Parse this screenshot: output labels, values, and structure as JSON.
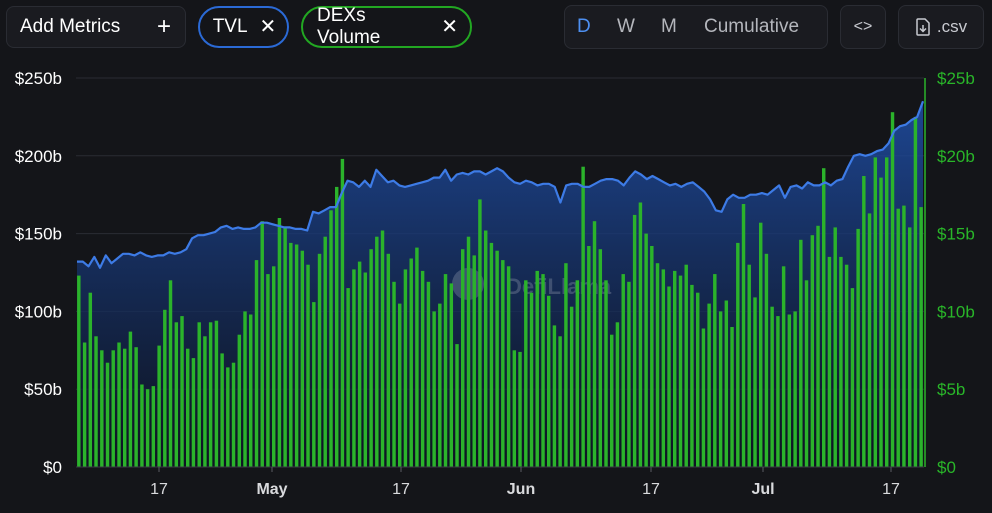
{
  "toolbar": {
    "add_metrics_label": "Add Metrics",
    "add_icon": "plus-icon",
    "chips": [
      {
        "label": "TVL",
        "color": "#2b6ad6",
        "remove_icon": "close-icon"
      },
      {
        "label": "DEXs Volume",
        "color": "#22a722",
        "remove_icon": "close-icon"
      }
    ],
    "periods": [
      "D",
      "W",
      "M",
      "Cumulative"
    ],
    "active_period": "D",
    "embed_icon": "code-icon",
    "csv_icon": "download-file-icon",
    "csv_label": ".csv"
  },
  "watermark": "DefiLlama",
  "chart_data": {
    "type": "bar+area",
    "x_tick_labels": [
      "17",
      "May",
      "17",
      "Jun",
      "17",
      "Jul",
      "17"
    ],
    "left_axis": {
      "ticks": [
        "$0",
        "$50b",
        "$100b",
        "$150b",
        "$200b",
        "$250b"
      ],
      "ylim": [
        0,
        250
      ]
    },
    "right_axis": {
      "ticks": [
        "$0",
        "$5b",
        "$10b",
        "$15b",
        "$20b",
        "$25b"
      ],
      "ylim": [
        0,
        25
      ]
    },
    "grid": true,
    "series": [
      {
        "name": "TVL",
        "type": "area",
        "axis": "left",
        "color": "#3d7be6",
        "values": [
          132,
          132,
          129,
          135,
          128,
          136,
          131,
          134,
          137,
          137,
          136,
          138,
          136,
          135,
          136,
          136,
          138,
          137,
          138,
          140,
          147,
          149,
          149,
          150,
          151,
          154,
          155,
          153,
          154,
          153,
          153,
          154,
          157,
          157,
          156,
          155,
          154,
          154,
          153,
          153,
          152,
          164,
          163,
          165,
          167,
          167,
          176,
          184,
          183,
          180,
          184,
          180,
          191,
          187,
          183,
          184,
          181,
          180,
          181,
          182,
          183,
          184,
          186,
          186,
          191,
          184,
          188,
          189,
          188,
          190,
          190,
          188,
          190,
          192,
          190,
          186,
          183,
          182,
          184,
          183,
          181,
          182,
          182,
          180,
          170,
          181,
          182,
          182,
          180,
          180,
          182,
          184,
          185,
          185,
          184,
          181,
          186,
          190,
          188,
          185,
          187,
          185,
          183,
          181,
          182,
          180,
          182,
          183,
          180,
          177,
          172,
          165,
          164,
          172,
          175,
          173,
          173,
          175,
          175,
          176,
          175,
          178,
          181,
          173,
          180,
          181,
          179,
          183,
          181,
          181,
          183,
          181,
          184,
          185,
          193,
          200,
          201,
          200,
          201,
          203,
          204,
          208,
          216,
          219,
          220,
          223,
          225,
          235
        ]
      },
      {
        "name": "DEXs Volume",
        "type": "bar",
        "axis": "right",
        "color": "#2bb32b",
        "values": [
          12.3,
          8.0,
          11.2,
          8.4,
          7.5,
          6.7,
          7.5,
          8.0,
          7.6,
          8.7,
          7.7,
          5.3,
          5.0,
          5.2,
          7.8,
          10.1,
          12.0,
          9.3,
          9.7,
          7.6,
          7.0,
          9.3,
          8.4,
          9.3,
          9.4,
          7.3,
          6.4,
          6.7,
          8.5,
          10.0,
          9.8,
          13.3,
          15.8,
          12.4,
          12.9,
          16.0,
          15.4,
          14.4,
          14.3,
          13.9,
          13.0,
          10.6,
          13.7,
          14.8,
          16.5,
          18.0,
          19.8,
          11.5,
          12.7,
          13.2,
          12.5,
          14.0,
          14.8,
          15.2,
          13.7,
          11.9,
          10.5,
          12.7,
          13.4,
          14.1,
          12.6,
          11.9,
          10.0,
          10.5,
          12.4,
          11.8,
          7.9,
          14.0,
          14.8,
          13.6,
          17.2,
          15.2,
          14.4,
          13.9,
          13.3,
          12.9,
          7.5,
          7.4,
          12.0,
          11.2,
          12.6,
          12.4,
          11.0,
          9.1,
          8.4,
          13.1,
          10.3,
          12.0,
          19.3,
          14.2,
          15.8,
          14.0,
          12.0,
          8.5,
          9.3,
          12.4,
          11.9,
          16.2,
          17.0,
          15.0,
          14.2,
          13.1,
          12.7,
          11.6,
          12.6,
          12.3,
          13.0,
          11.7,
          11.2,
          8.9,
          10.5,
          12.4,
          10.0,
          10.7,
          9.0,
          14.4,
          16.9,
          13.0,
          10.9,
          15.7,
          13.7,
          10.3,
          9.7,
          12.9,
          9.8,
          10.0,
          14.6,
          12.0,
          14.9,
          15.5,
          19.2,
          13.5,
          15.4,
          13.5,
          13.0,
          11.5,
          15.3,
          18.7,
          16.3,
          19.9,
          18.6,
          19.9,
          22.8,
          16.6,
          16.8,
          15.4,
          22.5,
          16.7
        ]
      }
    ]
  }
}
